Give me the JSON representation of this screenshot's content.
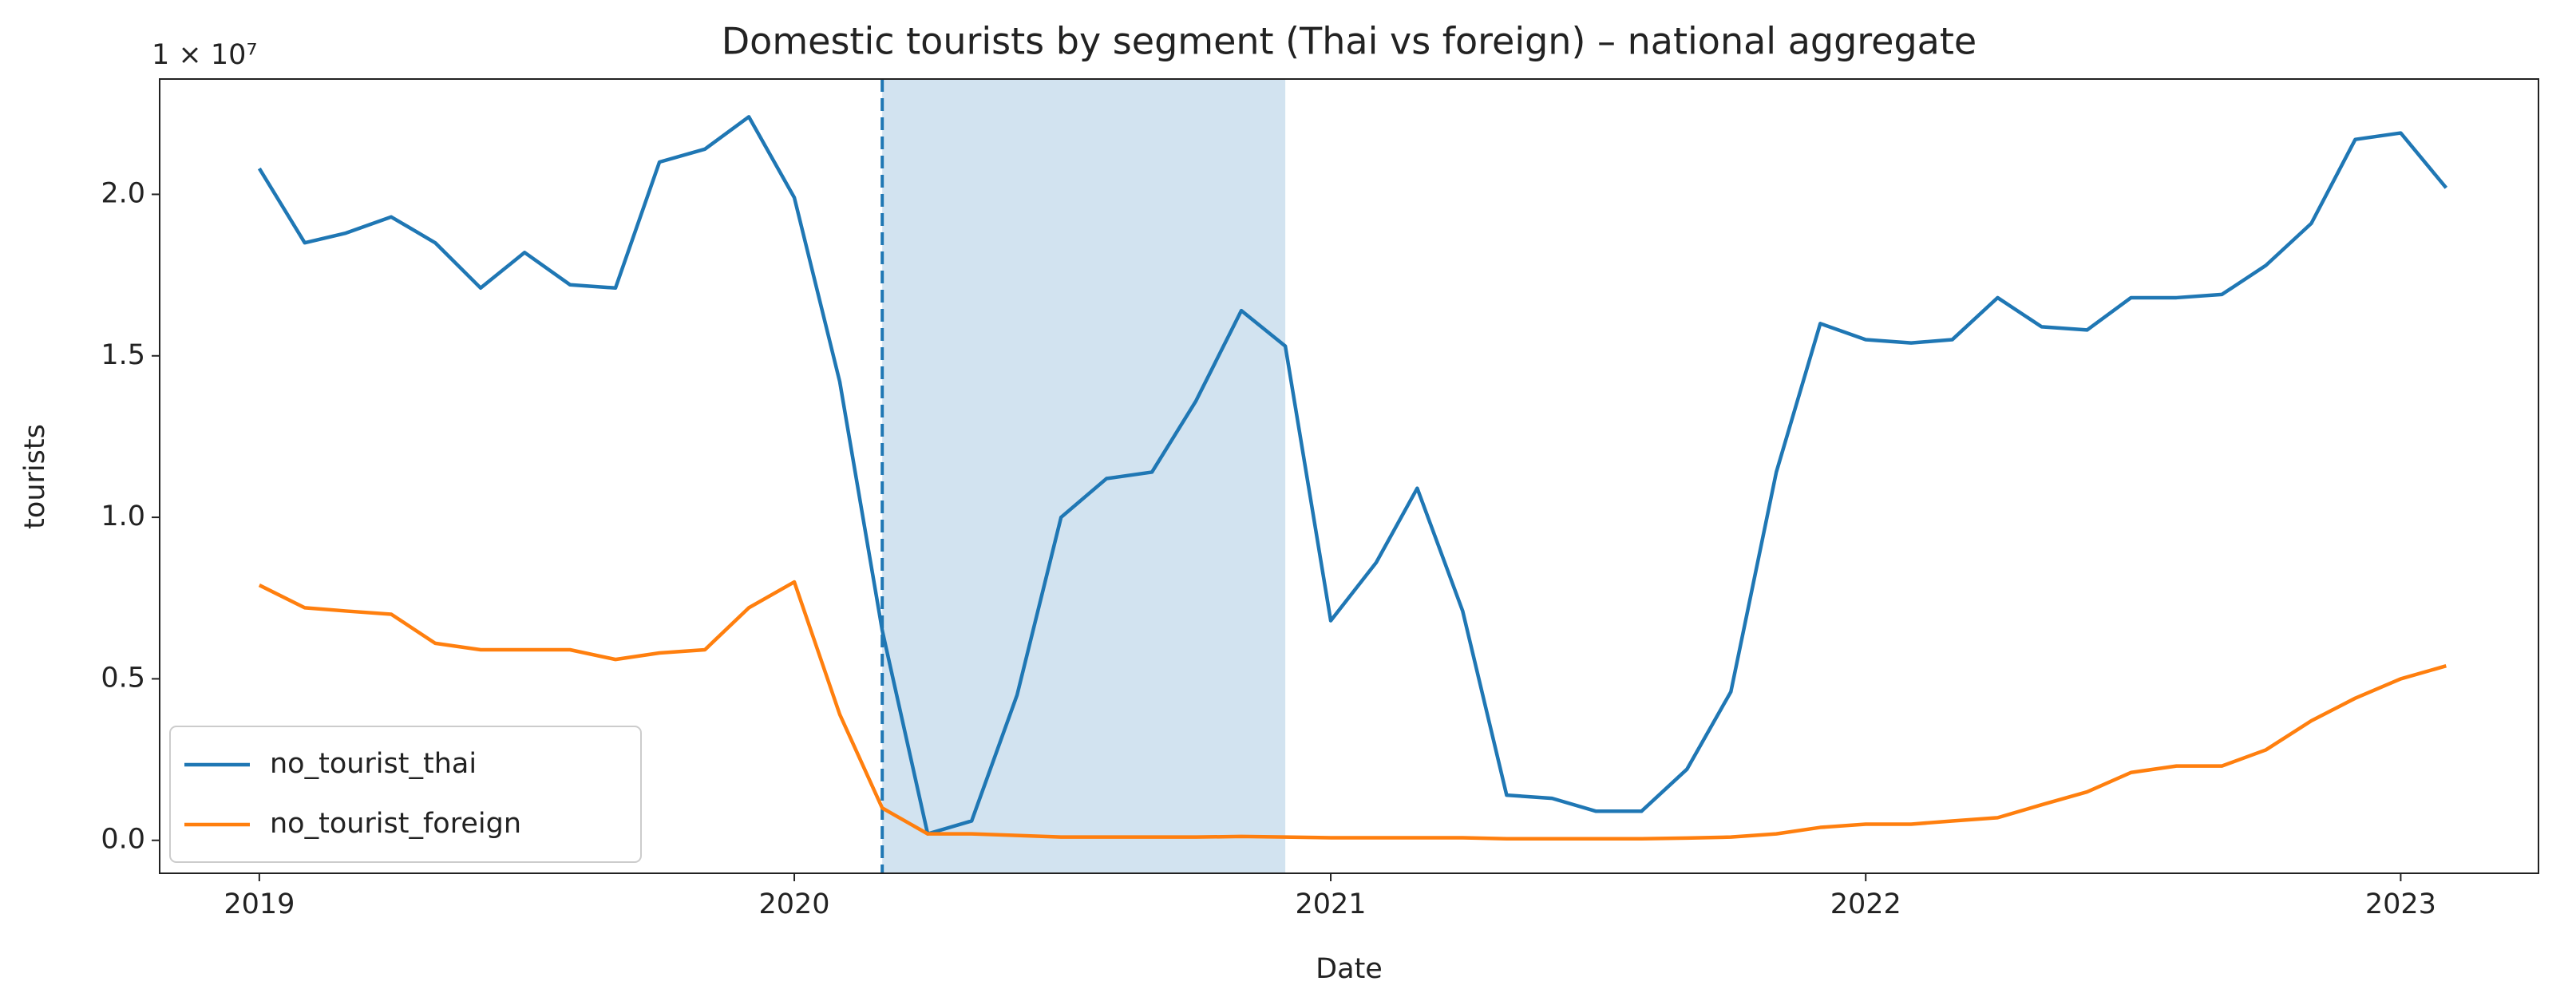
{
  "chart_data": {
    "type": "line",
    "title": "Domestic tourists by segment (Thai vs foreign) – national aggregate",
    "xlabel": "Date",
    "ylabel": "tourists",
    "y_offset_label": "1 × 10⁷",
    "x": [
      "2019-01",
      "2019-02",
      "2019-03",
      "2019-04",
      "2019-05",
      "2019-06",
      "2019-07",
      "2019-08",
      "2019-09",
      "2019-10",
      "2019-11",
      "2019-12",
      "2020-01",
      "2020-02",
      "2020-03",
      "2020-04",
      "2020-05",
      "2020-06",
      "2020-07",
      "2020-08",
      "2020-09",
      "2020-10",
      "2020-11",
      "2020-12",
      "2021-01",
      "2021-02",
      "2021-03",
      "2021-04",
      "2021-05",
      "2021-06",
      "2021-07",
      "2021-08",
      "2021-09",
      "2021-10",
      "2021-11",
      "2021-12",
      "2022-01",
      "2022-02",
      "2022-03",
      "2022-04",
      "2022-05",
      "2022-06",
      "2022-07",
      "2022-08",
      "2022-09",
      "2022-10",
      "2022-11",
      "2022-12",
      "2023-01",
      "2023-02"
    ],
    "series": [
      {
        "name": "no_tourist_thai",
        "color": "#1f77b4",
        "values": [
          2.08,
          1.85,
          1.88,
          1.93,
          1.85,
          1.71,
          1.82,
          1.72,
          1.71,
          2.1,
          2.14,
          2.24,
          1.99,
          1.42,
          0.65,
          0.02,
          0.06,
          0.45,
          1.0,
          1.12,
          1.14,
          1.36,
          1.64,
          1.53,
          0.68,
          0.86,
          1.09,
          0.71,
          0.14,
          0.13,
          0.09,
          0.09,
          0.22,
          0.46,
          1.14,
          1.6,
          1.55,
          1.54,
          1.55,
          1.68,
          1.59,
          1.58,
          1.68,
          1.68,
          1.69,
          1.78,
          1.91,
          2.17,
          2.19,
          2.02
        ]
      },
      {
        "name": "no_tourist_foreign",
        "color": "#ff7f0e",
        "values": [
          0.79,
          0.72,
          0.71,
          0.7,
          0.61,
          0.59,
          0.59,
          0.59,
          0.56,
          0.58,
          0.59,
          0.72,
          0.8,
          0.39,
          0.1,
          0.02,
          0.02,
          0.015,
          0.01,
          0.01,
          0.01,
          0.01,
          0.012,
          0.01,
          0.008,
          0.008,
          0.008,
          0.008,
          0.005,
          0.005,
          0.005,
          0.005,
          0.007,
          0.01,
          0.02,
          0.04,
          0.05,
          0.05,
          0.06,
          0.07,
          0.11,
          0.15,
          0.21,
          0.23,
          0.23,
          0.28,
          0.37,
          0.44,
          0.5,
          0.54
        ]
      }
    ],
    "vline": "2020-03",
    "vline_color": "#1f77b4",
    "span": [
      "2020-03",
      "2020-12"
    ],
    "span_color": "#d2e3f0",
    "xlim": [
      "2018-10-25",
      "2023-04-05"
    ],
    "xticks": [
      {
        "value": "2019-01",
        "label": "2019"
      },
      {
        "value": "2020-01",
        "label": "2020"
      },
      {
        "value": "2021-01",
        "label": "2021"
      },
      {
        "value": "2022-01",
        "label": "2022"
      },
      {
        "value": "2023-01",
        "label": "2023"
      }
    ],
    "ylim": [
      -0.102,
      2.357
    ],
    "yticks": [
      {
        "value": 0,
        "label": "0.0"
      },
      {
        "value": 0.5,
        "label": "0.5"
      },
      {
        "value": 1,
        "label": "1.0"
      },
      {
        "value": 1.5,
        "label": "1.5"
      },
      {
        "value": 2,
        "label": "2.0"
      }
    ],
    "legend": "lower left",
    "grid": false
  }
}
